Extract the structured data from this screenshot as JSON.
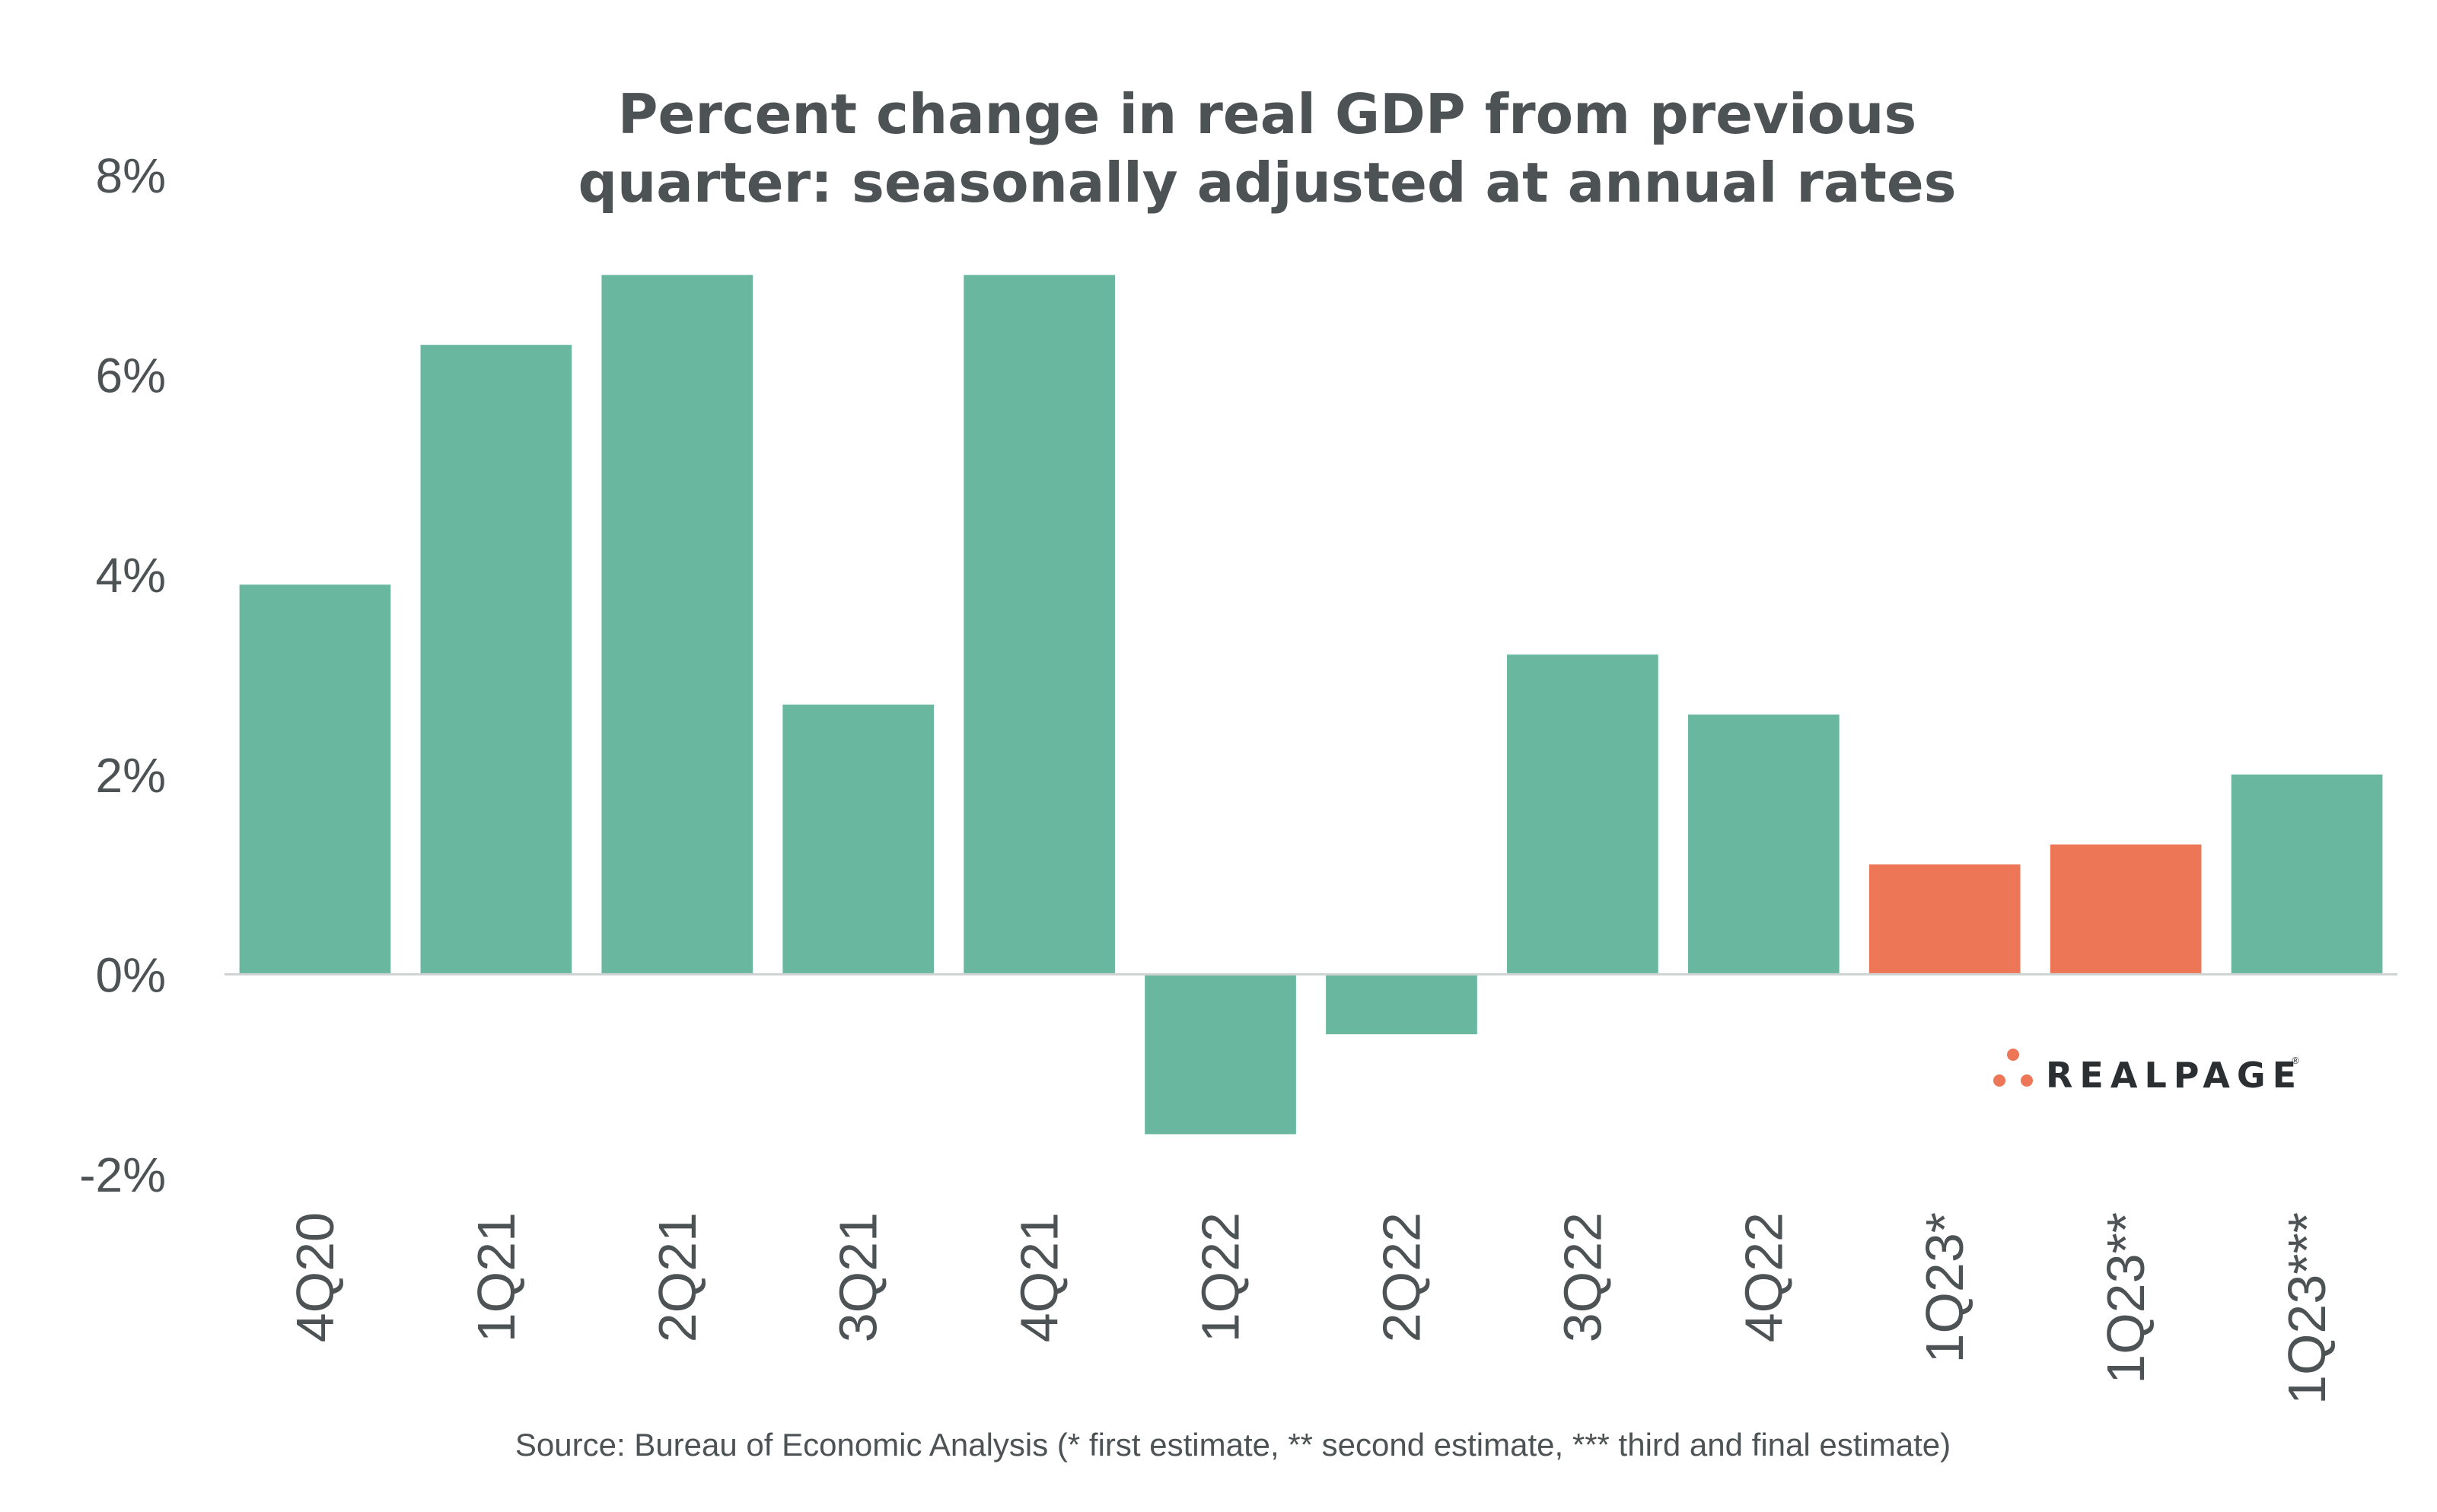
{
  "chart_data": {
    "type": "bar",
    "title_lines": [
      "Percent change in real GDP from previous",
      "quarter: seasonally adjusted at annual rates"
    ],
    "categories": [
      "4Q20",
      "1Q21",
      "2Q21",
      "3Q21",
      "4Q21",
      "1Q22",
      "2Q22",
      "3Q22",
      "4Q22",
      "1Q23*",
      "1Q23**",
      "1Q23***"
    ],
    "values": [
      3.9,
      6.3,
      7.0,
      2.7,
      7.0,
      -1.6,
      -0.6,
      3.2,
      2.6,
      1.1,
      1.3,
      2.0
    ],
    "bar_colors": [
      "#69b79f",
      "#69b79f",
      "#69b79f",
      "#69b79f",
      "#69b79f",
      "#69b79f",
      "#69b79f",
      "#69b79f",
      "#69b79f",
      "#ec7656",
      "#ec7656",
      "#69b79f"
    ],
    "ylim": [
      -2,
      8
    ],
    "yticks": [
      -2,
      0,
      2,
      4,
      6,
      8
    ],
    "ytick_labels": [
      "-2%",
      "0%",
      "2%",
      "4%",
      "6%",
      "8%"
    ],
    "xlabel": "",
    "ylabel": "",
    "grid": false,
    "zero_line_color": "#cfd2d3",
    "source": "Source:  Bureau of Economic Analysis (* first estimate, ** second estimate, *** third and final estimate)"
  },
  "logo": {
    "text": "REALPAGE",
    "trademark": "®",
    "dot_color": "#ec7656"
  }
}
